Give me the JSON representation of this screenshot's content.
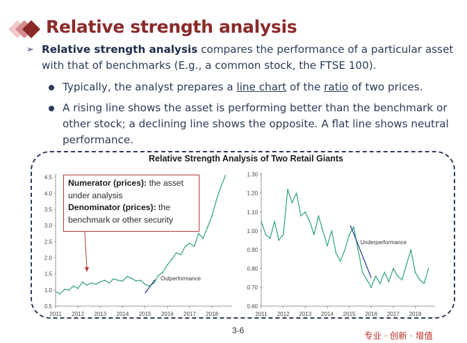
{
  "slide": {
    "title": "Relative strength analysis",
    "bullet_main": {
      "bold_lead": "Relative strength analysis",
      "rest": " compares the performance of a particular asset with that of benchmarks (E.g., a common stock, the FTSE 100)."
    },
    "sub_bullets": [
      {
        "pre": "Typically, the analyst prepares a ",
        "link1": "line chart",
        "mid": " of the ",
        "link2": "ratio",
        "post": " of two prices."
      },
      {
        "text": "A rising line shows the asset is performing better than the benchmark or other stock; a declining line shows the opposite. A flat line shows neutral performance."
      }
    ],
    "page_number": "3-6",
    "footer": "专业 · 创新 · 增值",
    "colors": {
      "title": "#8b2a2a",
      "text": "#2b3b58",
      "series": "#3aa780",
      "annot_border": "#b23b3b",
      "footer": "#c0302a"
    }
  },
  "figure": {
    "title": "Relative Strength Analysis of Two Retail Giants",
    "annotation": {
      "numerator_label": "Numerator (prices):",
      "numerator_text": " the asset under analysis",
      "denominator_label": "Denominator (prices):",
      "denominator_text": " the benchmark or other security"
    }
  },
  "chart_data": [
    {
      "type": "line",
      "x_ticks": [
        "2011",
        "2012",
        "2013",
        "2014",
        "2015",
        "2016",
        "2017",
        "2018"
      ],
      "y_ticks": [
        "0.5",
        "1.0",
        "1.5",
        "2.0",
        "2.5",
        "3.0",
        "3.5",
        "4.0",
        "4.5"
      ],
      "ylim": [
        0.5,
        4.6
      ],
      "xlim": [
        2011,
        2018.9
      ],
      "annotations": [
        "Outperformance"
      ],
      "series": [
        {
          "x": [
            2011.0,
            2011.2,
            2011.4,
            2011.6,
            2011.8,
            2012.0,
            2012.2,
            2012.4,
            2012.6,
            2012.8,
            2013.0,
            2013.2,
            2013.4,
            2013.6,
            2013.8,
            2014.0,
            2014.2,
            2014.4,
            2014.6,
            2014.8,
            2015.0,
            2015.2,
            2015.4,
            2015.6,
            2015.8,
            2016.0,
            2016.2,
            2016.4,
            2016.6,
            2016.8,
            2017.0,
            2017.2,
            2017.4,
            2017.6,
            2017.8,
            2018.0,
            2018.2,
            2018.4,
            2018.6
          ],
          "y": [
            0.95,
            0.88,
            1.02,
            1.0,
            1.12,
            1.05,
            1.25,
            1.15,
            1.22,
            1.18,
            1.25,
            1.3,
            1.22,
            1.35,
            1.3,
            1.28,
            1.42,
            1.36,
            1.28,
            1.3,
            1.18,
            1.12,
            1.22,
            1.45,
            1.55,
            1.78,
            1.95,
            2.15,
            2.1,
            2.35,
            2.45,
            2.35,
            2.75,
            2.6,
            2.95,
            3.3,
            3.8,
            4.2,
            4.55
          ]
        }
      ]
    },
    {
      "type": "line",
      "x_ticks": [
        "2011",
        "2012",
        "2013",
        "2014",
        "2015",
        "2016",
        "2017",
        "2018"
      ],
      "y_ticks": [
        "0.60",
        "0.70",
        "0.80",
        "0.90",
        "1.00",
        "1.10",
        "1.20",
        "1.30"
      ],
      "ylim": [
        0.6,
        1.31
      ],
      "xlim": [
        2011,
        2018.9
      ],
      "annotations": [
        "Underperformance"
      ],
      "series": [
        {
          "x": [
            2011.0,
            2011.2,
            2011.4,
            2011.6,
            2011.8,
            2012.0,
            2012.2,
            2012.4,
            2012.6,
            2012.8,
            2013.0,
            2013.2,
            2013.4,
            2013.6,
            2013.8,
            2014.0,
            2014.2,
            2014.4,
            2014.6,
            2014.8,
            2015.0,
            2015.2,
            2015.4,
            2015.6,
            2015.8,
            2016.0,
            2016.2,
            2016.4,
            2016.6,
            2016.8,
            2017.0,
            2017.2,
            2017.4,
            2017.6,
            2017.8,
            2018.0,
            2018.2,
            2018.4,
            2018.6
          ],
          "y": [
            1.05,
            0.98,
            0.96,
            1.05,
            0.95,
            0.98,
            1.22,
            1.15,
            1.2,
            1.08,
            1.1,
            1.05,
            0.98,
            1.08,
            1.0,
            0.92,
            1.0,
            0.88,
            0.84,
            0.9,
            0.98,
            1.02,
            0.9,
            0.78,
            0.74,
            0.7,
            0.76,
            0.72,
            0.78,
            0.73,
            0.8,
            0.76,
            0.74,
            0.82,
            0.9,
            0.78,
            0.74,
            0.72,
            0.8
          ]
        }
      ]
    }
  ]
}
